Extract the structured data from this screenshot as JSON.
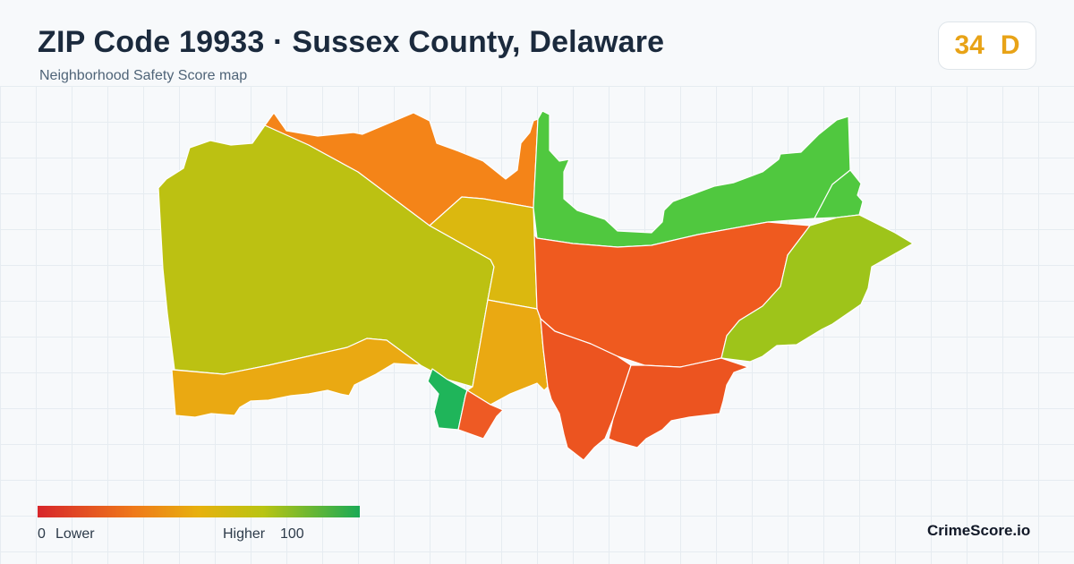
{
  "header": {
    "title": "ZIP Code 19933 · Sussex County, Delaware",
    "subtitle": "Neighborhood Safety Score map"
  },
  "score": {
    "value": "34",
    "grade": "D",
    "color": "#e8a317"
  },
  "legend": {
    "min_label": "0",
    "low_label": "Lower",
    "high_label": "Higher",
    "max_label": "100",
    "colors": [
      "#d7262b",
      "#ef7a1a",
      "#e7b10e",
      "#b9c412",
      "#1aaa55"
    ]
  },
  "brand": "CrimeScore.io",
  "map": {
    "region_colors": {
      "west": "#bcc112",
      "west_south_strip": "#eaa912",
      "north_orange": "#f48418",
      "center_yellow": "#dbb80f",
      "south_center": "#eaa912",
      "green_small": "#1fb55a",
      "red_small": "#ee5a24",
      "north_east_green": "#50c83f",
      "east_red": "#ef5a1f",
      "far_east": "#9ec41a",
      "south_red_a": "#ec5420",
      "south_red_b": "#ec5420",
      "small_green_right": "#50c83f"
    }
  }
}
